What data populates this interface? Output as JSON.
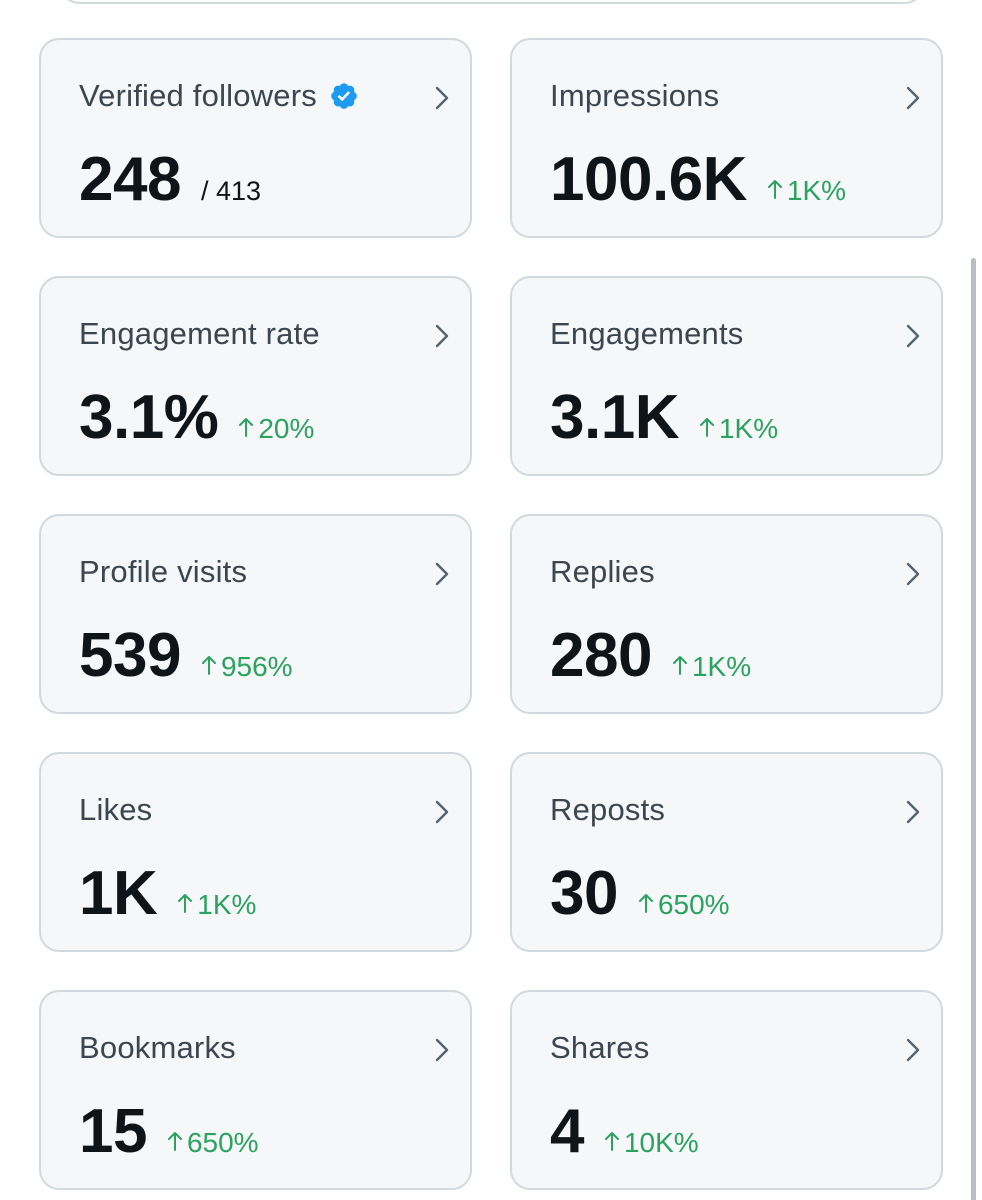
{
  "colors": {
    "card_background": "#f5f7f8",
    "card_border": "#cfd9de",
    "label": "#3c4650",
    "value": "#0f1419",
    "positive_change": "#2ca25f",
    "verified_badge": "#1d9bf0",
    "chevron": "#536471"
  },
  "cards": [
    {
      "label": "Verified followers",
      "value": "248",
      "total": "/ 413",
      "change": "",
      "icon": "verified-badge-icon"
    },
    {
      "label": "Impressions",
      "value": "100.6K",
      "total": "",
      "change": "1K%"
    },
    {
      "label": "Engagement rate",
      "value": "3.1%",
      "total": "",
      "change": "20%"
    },
    {
      "label": "Engagements",
      "value": "3.1K",
      "total": "",
      "change": "1K%"
    },
    {
      "label": "Profile visits",
      "value": "539",
      "total": "",
      "change": "956%"
    },
    {
      "label": "Replies",
      "value": "280",
      "total": "",
      "change": "1K%"
    },
    {
      "label": "Likes",
      "value": "1K",
      "total": "",
      "change": "1K%"
    },
    {
      "label": "Reposts",
      "value": "30",
      "total": "",
      "change": "650%"
    },
    {
      "label": "Bookmarks",
      "value": "15",
      "total": "",
      "change": "650%"
    },
    {
      "label": "Shares",
      "value": "4",
      "total": "",
      "change": "10K%"
    }
  ]
}
